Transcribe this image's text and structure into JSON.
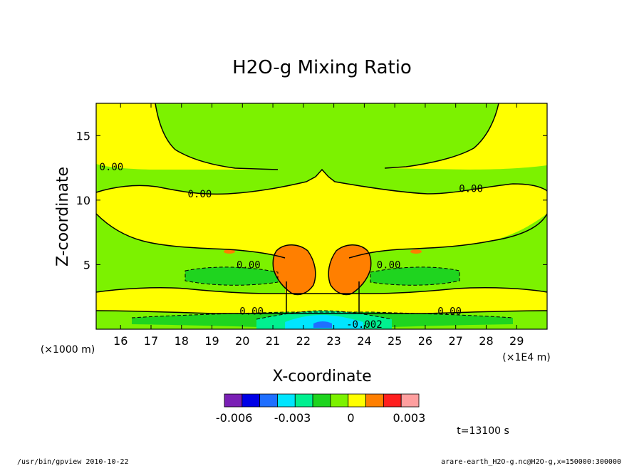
{
  "chart_data": {
    "type": "heatmap",
    "title": "H2O-g Mixing Ratio",
    "xlabel": "X-coordinate",
    "ylabel": "Z-coordinate",
    "x_unit_note": "(×1E4 m)",
    "y_unit_note": "(×1000 m)",
    "xlim": [
      15.2,
      30.0
    ],
    "ylim": [
      0.0,
      17.5
    ],
    "x_ticks": [
      16,
      17,
      18,
      19,
      20,
      21,
      22,
      23,
      24,
      25,
      26,
      27,
      28,
      29
    ],
    "y_ticks": [
      5,
      10,
      15
    ],
    "grid": false,
    "colorbar": {
      "levels": [
        -0.0065,
        -0.0055,
        -0.0045,
        -0.0035,
        -0.0025,
        -0.0015,
        -0.0005,
        0.0005,
        0.0015,
        0.0025,
        0.0035
      ],
      "colors": [
        "#7a1fb5",
        "#0000e6",
        "#1f6fff",
        "#00e5ff",
        "#00f090",
        "#1fd41f",
        "#7cf200",
        "#ffff00",
        "#ff7f00",
        "#ff1f1f",
        "#ff9f9f"
      ],
      "tick_labels": [
        "-0.006",
        "-0.003",
        "0",
        "0.003"
      ],
      "tick_values": [
        -0.006,
        -0.003,
        0.0,
        0.003
      ]
    },
    "contour_labels": [
      {
        "text": "0.00",
        "x": 15.7,
        "z": 12.6
      },
      {
        "text": "0.00",
        "x": 18.6,
        "z": 10.5
      },
      {
        "text": "0.00",
        "x": 27.5,
        "z": 10.9
      },
      {
        "text": "0.00",
        "x": 20.2,
        "z": 5.0
      },
      {
        "text": "0.00",
        "x": 24.8,
        "z": 5.0
      },
      {
        "text": "0.00",
        "x": 20.3,
        "z": 1.4
      },
      {
        "text": "0.00",
        "x": 26.8,
        "z": 1.4
      },
      {
        "text": "-0.002",
        "x": 24.0,
        "z": 0.4
      }
    ]
  },
  "time_label": "t=13100 s",
  "footer_left": "/usr/bin/gpview   2010-10-22",
  "footer_right": "arare-earth_H2O-g.nc@H2O-g,x=150000:300000"
}
